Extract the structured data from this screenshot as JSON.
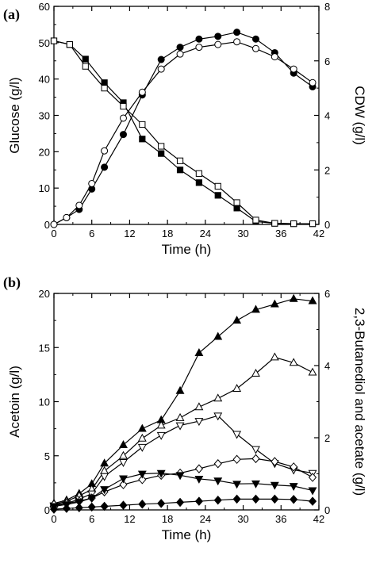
{
  "chart_data": [
    {
      "type": "line",
      "panel_label": "(a)",
      "xlabel": "Time (h)",
      "ylabel_left": "Glucose (g/l)",
      "ylabel_right": "CDW (g/l)",
      "xlim": [
        0,
        42
      ],
      "ylim_left": [
        0,
        60
      ],
      "ylim_right": [
        0,
        8
      ],
      "xticks": [
        "0",
        "6",
        "12",
        "18",
        "24",
        "30",
        "36",
        "42"
      ],
      "yticks_left": [
        "0",
        "10",
        "20",
        "30",
        "40",
        "50",
        "60"
      ],
      "yticks_right": [
        "0",
        "2",
        "4",
        "6",
        "8"
      ],
      "grid": false,
      "series": [
        {
          "axis": "left",
          "marker": "square",
          "fill": "filled",
          "x": [
            0,
            2.5,
            5,
            8,
            11,
            14,
            17,
            20,
            23,
            26,
            29,
            32,
            35,
            38,
            41
          ],
          "y": [
            50.5,
            49.5,
            45.5,
            39,
            33.5,
            23.5,
            19.5,
            15,
            11.5,
            8,
            4.5,
            0.8,
            0.3,
            0.2,
            0.2
          ]
        },
        {
          "axis": "left",
          "marker": "square",
          "fill": "open",
          "x": [
            0,
            2.5,
            5,
            8,
            11,
            14,
            17,
            20,
            23,
            26,
            29,
            32,
            35,
            38,
            41
          ],
          "y": [
            50.5,
            49.5,
            43.5,
            37.5,
            32.5,
            27.5,
            21.5,
            17.5,
            14,
            10.5,
            6,
            1.2,
            0.3,
            0.2,
            0.2
          ]
        },
        {
          "axis": "right",
          "marker": "circle",
          "fill": "filled",
          "x": [
            0,
            2,
            4,
            6,
            8,
            11,
            14,
            17,
            20,
            23,
            26,
            29,
            32,
            35,
            38,
            41
          ],
          "y": [
            0,
            0.25,
            0.55,
            1.3,
            2.1,
            3.3,
            4.75,
            6.05,
            6.5,
            6.8,
            6.9,
            7.05,
            6.8,
            6.3,
            5.55,
            5.05
          ]
        },
        {
          "axis": "right",
          "marker": "circle",
          "fill": "open",
          "x": [
            0,
            2,
            4,
            6,
            8,
            11,
            14,
            17,
            20,
            23,
            26,
            29,
            32,
            35,
            38,
            41
          ],
          "y": [
            0,
            0.25,
            0.7,
            1.5,
            2.7,
            3.9,
            4.85,
            5.7,
            6.25,
            6.5,
            6.6,
            6.7,
            6.45,
            6.15,
            5.7,
            5.2
          ]
        }
      ]
    },
    {
      "type": "line",
      "panel_label": "(b)",
      "xlabel": "Time (h)",
      "ylabel_left": "Acetoin (g/l)",
      "ylabel_right": "2,3-Butanediol and acetate (g/l)",
      "xlim": [
        0,
        42
      ],
      "ylim_left": [
        0,
        20
      ],
      "ylim_right": [
        0,
        6
      ],
      "xticks": [
        "0",
        "6",
        "12",
        "18",
        "24",
        "30",
        "36",
        "42"
      ],
      "yticks_left": [
        "0",
        "5",
        "10",
        "15",
        "20"
      ],
      "yticks_right": [
        "0",
        "2",
        "4",
        "6"
      ],
      "grid": false,
      "series": [
        {
          "axis": "left",
          "marker": "triangle-up",
          "fill": "filled",
          "x": [
            0,
            2,
            4,
            6,
            8,
            11,
            14,
            17,
            20,
            23,
            26,
            29,
            32,
            35,
            38,
            41
          ],
          "y": [
            0.6,
            0.9,
            1.5,
            2.4,
            4.3,
            6.0,
            7.5,
            8.3,
            11.0,
            14.5,
            16.0,
            17.5,
            18.5,
            19.0,
            19.5,
            19.3
          ]
        },
        {
          "axis": "left",
          "marker": "triangle-up",
          "fill": "open",
          "x": [
            0,
            2,
            4,
            6,
            8,
            11,
            14,
            17,
            20,
            23,
            26,
            29,
            32,
            35,
            38,
            41
          ],
          "y": [
            0.5,
            0.8,
            1.3,
            1.9,
            3.6,
            5.0,
            6.6,
            7.8,
            8.5,
            9.5,
            10.3,
            11.2,
            12.6,
            14.1,
            13.6,
            12.7
          ]
        },
        {
          "axis": "left",
          "marker": "triangle-down",
          "fill": "open",
          "x": [
            0,
            2,
            4,
            6,
            8,
            11,
            14,
            17,
            20,
            23,
            26,
            29,
            32,
            35,
            38,
            41
          ],
          "y": [
            0.4,
            0.6,
            1.0,
            1.5,
            3.1,
            4.4,
            5.8,
            6.9,
            7.8,
            8.2,
            8.7,
            7.0,
            5.6,
            4.3,
            3.7,
            3.4
          ]
        },
        {
          "axis": "right",
          "marker": "diamond",
          "fill": "open",
          "x": [
            0,
            2,
            4,
            6,
            8,
            11,
            14,
            17,
            20,
            23,
            26,
            29,
            32,
            35,
            38,
            41
          ],
          "y": [
            0.15,
            0.18,
            0.24,
            0.33,
            0.5,
            0.7,
            0.84,
            0.96,
            1.02,
            1.14,
            1.28,
            1.4,
            1.42,
            1.34,
            1.19,
            0.9
          ]
        },
        {
          "axis": "right",
          "marker": "triangle-down",
          "fill": "filled",
          "x": [
            0,
            2,
            4,
            6,
            8,
            11,
            14,
            17,
            20,
            23,
            26,
            29,
            32,
            35,
            38,
            41
          ],
          "y": [
            0.1,
            0.15,
            0.22,
            0.33,
            0.57,
            0.87,
            1.0,
            1.02,
            0.96,
            0.86,
            0.81,
            0.72,
            0.73,
            0.69,
            0.66,
            0.54
          ]
        },
        {
          "axis": "right",
          "marker": "diamond",
          "fill": "filled",
          "x": [
            0,
            2,
            4,
            6,
            8,
            11,
            14,
            17,
            20,
            23,
            26,
            29,
            32,
            35,
            38,
            41
          ],
          "y": [
            0.02,
            0.04,
            0.06,
            0.08,
            0.1,
            0.13,
            0.16,
            0.18,
            0.21,
            0.24,
            0.27,
            0.3,
            0.3,
            0.3,
            0.29,
            0.24
          ]
        }
      ]
    }
  ]
}
